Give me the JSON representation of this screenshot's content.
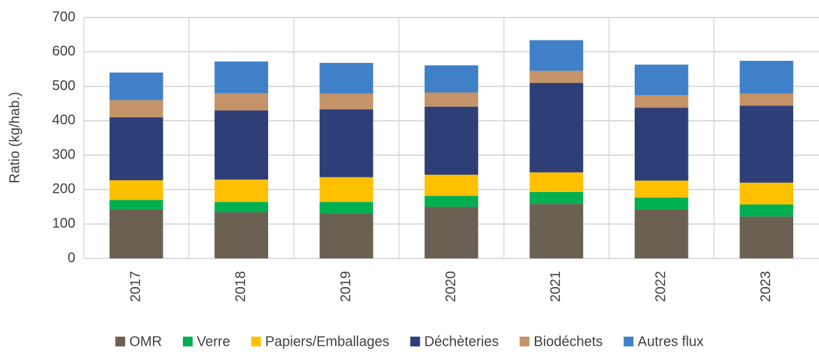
{
  "chart_data": {
    "type": "stacked_bar",
    "y_label": "Ratio (kg/hab.)",
    "categories": [
      "2017",
      "2018",
      "2019",
      "2020",
      "2021",
      "2022",
      "2023"
    ],
    "series": [
      {
        "name": "OMR",
        "color": "#6b6153",
        "values": [
          142,
          134,
          131,
          150,
          158,
          142,
          122
        ]
      },
      {
        "name": "Verre",
        "color": "#00b050",
        "values": [
          28,
          30,
          33,
          32,
          35,
          35,
          35
        ]
      },
      {
        "name": "Papiers/Emballages",
        "color": "#ffc000",
        "values": [
          57,
          65,
          72,
          61,
          57,
          49,
          63
        ]
      },
      {
        "name": "Déchèteries",
        "color": "#2e3f78",
        "values": [
          183,
          201,
          197,
          198,
          260,
          212,
          224
        ]
      },
      {
        "name": "Biodéchets",
        "color": "#c49367",
        "values": [
          50,
          50,
          46,
          41,
          35,
          36,
          35
        ]
      },
      {
        "name": "Autres flux",
        "color": "#3f80c9",
        "values": [
          80,
          92,
          89,
          79,
          89,
          89,
          95
        ]
      }
    ],
    "ylim": [
      0,
      700
    ],
    "yticks": [
      0,
      100,
      200,
      300,
      400,
      500,
      600,
      700
    ],
    "grid": true,
    "legend": "bottom"
  }
}
